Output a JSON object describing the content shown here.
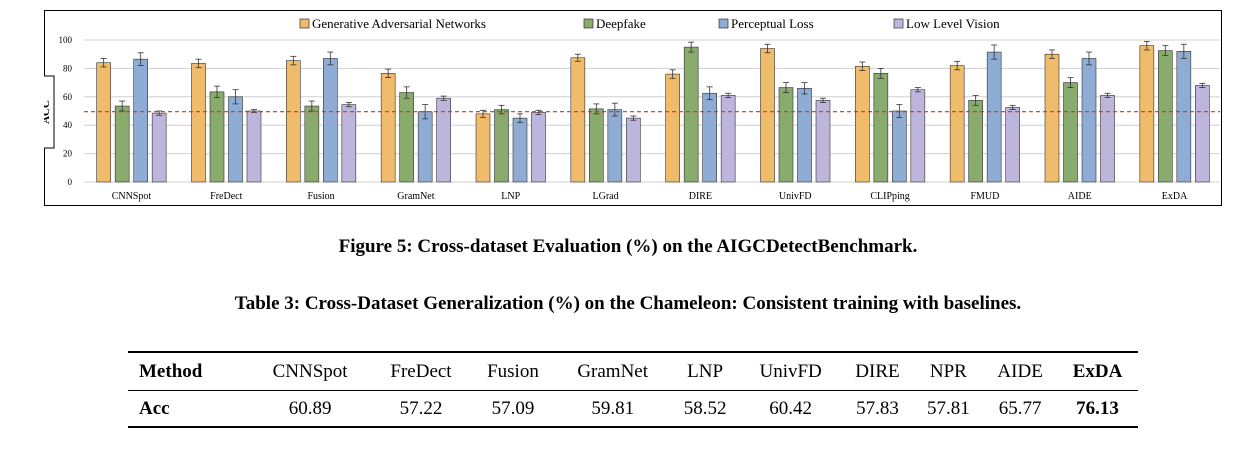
{
  "chart_data": {
    "type": "bar",
    "ylabel": "ACC",
    "ylim": [
      0,
      100
    ],
    "yticks": [
      0,
      20,
      40,
      60,
      80,
      100
    ],
    "grid": true,
    "legend_position": "top",
    "reference_line": {
      "value": 49.5,
      "style": "dashed",
      "color": "#c0392b"
    },
    "categories": [
      "CNNSpot",
      "FreDect",
      "Fusion",
      "GramNet",
      "LNP",
      "LGrad",
      "DIRE",
      "UnivFD",
      "CLIPping",
      "FMUD",
      "AIDE",
      "ExDA"
    ],
    "series": [
      {
        "name": "Generative Adversarial Networks",
        "color": "#f0bb6a",
        "values": [
          84,
          83.5,
          85.5,
          76.5,
          48,
          87.5,
          76,
          94,
          81.5,
          82,
          90,
          96
        ],
        "errors": [
          3,
          3,
          3,
          3,
          2.5,
          2.5,
          3,
          3,
          3,
          3,
          3,
          3
        ]
      },
      {
        "name": "Deepfake",
        "color": "#8aab6e",
        "values": [
          53.5,
          63.5,
          53.5,
          63,
          51,
          51.5,
          95,
          66.5,
          76.5,
          57.5,
          70,
          92.5
        ],
        "errors": [
          3.5,
          4,
          3.5,
          4,
          3,
          3.5,
          3.5,
          3.5,
          3.5,
          3.5,
          3.5,
          3.5
        ]
      },
      {
        "name": "Perceptual Loss",
        "color": "#8eacd4",
        "values": [
          86.5,
          60,
          87,
          49.5,
          45,
          51,
          62.5,
          66,
          50,
          91.5,
          87,
          92
        ],
        "errors": [
          4.5,
          5,
          4.5,
          5,
          3,
          4.5,
          4.5,
          4,
          4.5,
          5,
          4.5,
          5
        ]
      },
      {
        "name": "Low Level Vision",
        "color": "#bdb5dc",
        "values": [
          48.5,
          50,
          54.5,
          59,
          49,
          45,
          61,
          57.5,
          65,
          52.5,
          61,
          68
        ],
        "errors": [
          1.5,
          1,
          1.5,
          1.5,
          1.5,
          1.5,
          1.5,
          1.5,
          1.5,
          1.5,
          1.5,
          1.5
        ]
      }
    ]
  },
  "figure_caption": "Figure 5: Cross-dataset Evaluation (%) on the AIGCDetectBenchmark.",
  "table": {
    "caption": "Table 3: Cross-Dataset Generalization (%) on the Chameleon: Consistent training with baselines.",
    "header": [
      "Method",
      "CNNSpot",
      "FreDect",
      "Fusion",
      "GramNet",
      "LNP",
      "UnivFD",
      "DIRE",
      "NPR",
      "AIDE",
      "ExDA"
    ],
    "row": [
      "Acc",
      "60.89",
      "57.22",
      "57.09",
      "59.81",
      "58.52",
      "60.42",
      "57.83",
      "57.81",
      "65.77",
      "76.13"
    ]
  }
}
